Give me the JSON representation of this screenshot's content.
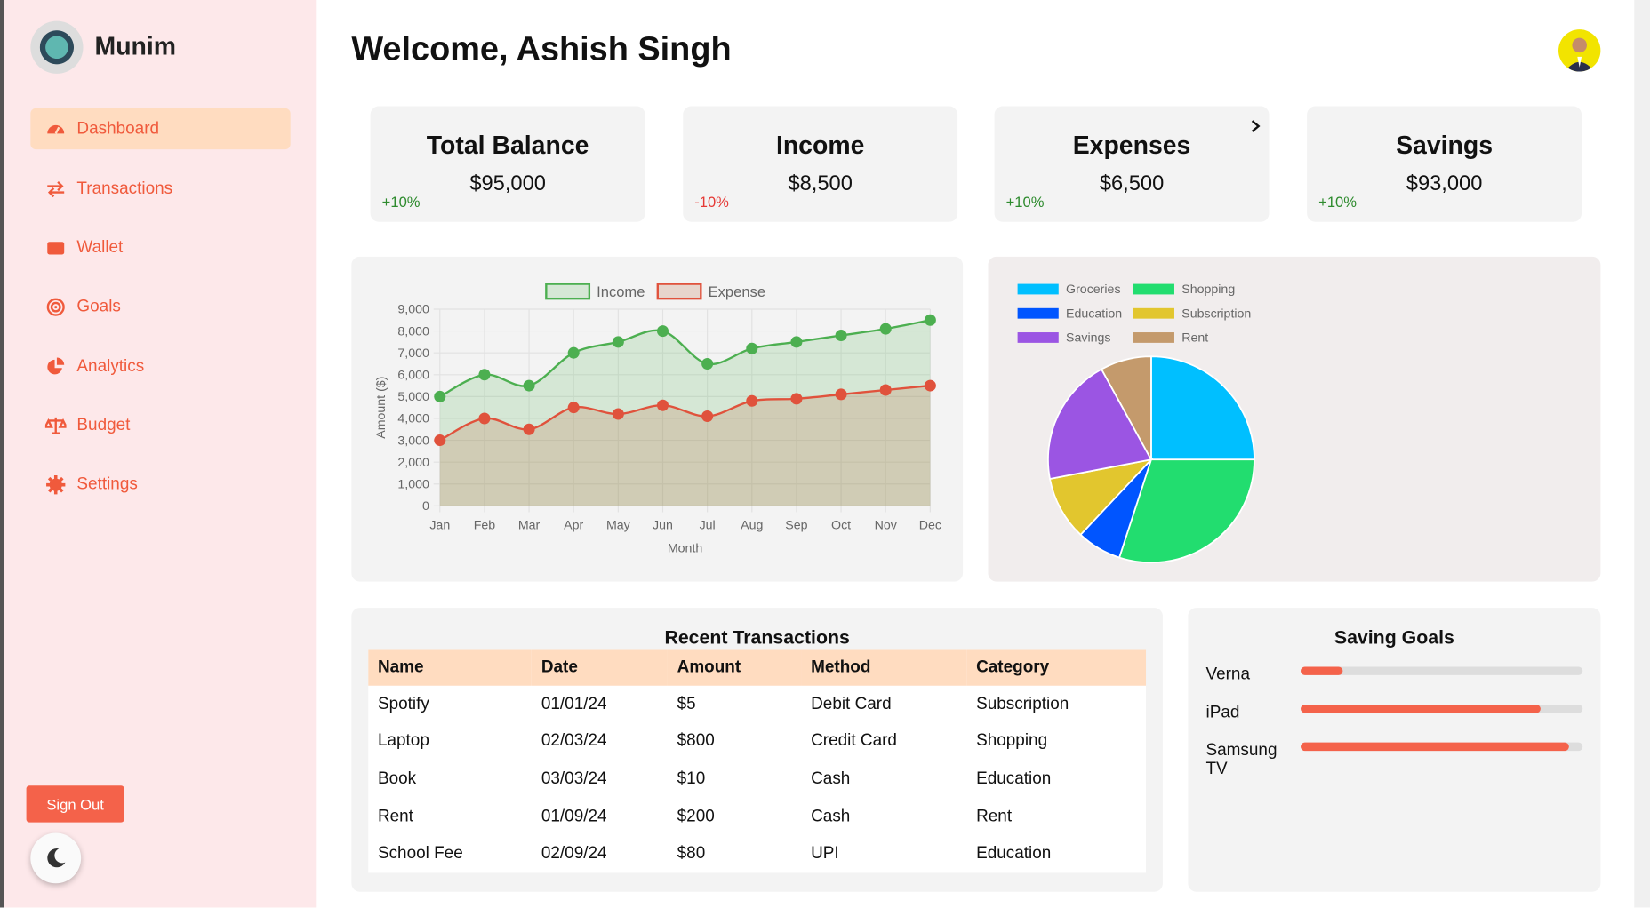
{
  "sidebar": {
    "brand": "Munim",
    "nav": [
      "Dashboard",
      "Transactions",
      "Wallet",
      "Goals",
      "Analytics",
      "Budget",
      "Settings"
    ],
    "sign_out": "Sign Out"
  },
  "header": {
    "title": "Welcome, Ashish Singh"
  },
  "cards": [
    {
      "title": "Total Balance",
      "value": "$95,000",
      "change": "+10%"
    },
    {
      "title": "Income",
      "value": "$8,500",
      "change": "-10%"
    },
    {
      "title": "Expenses",
      "value": "$6,500",
      "change": "+10%"
    },
    {
      "title": "Savings",
      "value": "$93,000",
      "change": "+10%"
    }
  ],
  "line_chart": {
    "type": "line",
    "x_label": "Month",
    "y_label": "Amount ($)",
    "categories": [
      "Jan",
      "Feb",
      "Mar",
      "Apr",
      "May",
      "Jun",
      "Jul",
      "Aug",
      "Sep",
      "Oct",
      "Nov",
      "Dec"
    ],
    "series": [
      {
        "name": "Income",
        "color": "#4caf50",
        "values": [
          5000,
          6000,
          5500,
          7000,
          7500,
          8000,
          6500,
          7200,
          7500,
          7800,
          8100,
          8500
        ]
      },
      {
        "name": "Expense",
        "color": "#e0523c",
        "values": [
          3000,
          4000,
          3500,
          4500,
          4200,
          4600,
          4100,
          4800,
          4900,
          5100,
          5300,
          5500
        ]
      }
    ],
    "ylim": [
      0,
      9000
    ],
    "yticks": [
      0,
      {
        "value": 1000,
        "label": "1,000"
      },
      {
        "value": 2000,
        "label": "2,000"
      },
      {
        "value": 3000,
        "label": "3,000"
      },
      {
        "value": 4000,
        "label": "4,000"
      },
      {
        "value": 5000,
        "label": "5,000"
      },
      {
        "value": 6000,
        "label": "6,000"
      },
      {
        "value": 7000,
        "label": "7,000"
      },
      {
        "value": 8000,
        "label": "8,000"
      },
      {
        "value": 9000,
        "label": "9,000"
      }
    ],
    "grid": true
  },
  "pie_chart": {
    "type": "pie",
    "categories": [
      "Groceries",
      "Shopping",
      "Education",
      "Subscription",
      "Savings",
      "Rent"
    ],
    "values": [
      25,
      30,
      7,
      10,
      20,
      8
    ],
    "colors": [
      "#00bfff",
      "#22dd6f",
      "#0055ff",
      "#e2c62e",
      "#9b55e3",
      "#c49a6c"
    ]
  },
  "transactions": {
    "title": "Recent Transactions",
    "columns": [
      "Name",
      "Date",
      "Amount",
      "Method",
      "Category"
    ],
    "rows": [
      [
        "Spotify",
        "01/01/24",
        "$5",
        "Debit Card",
        "Subscription"
      ],
      [
        "Laptop",
        "02/03/24",
        "$800",
        "Credit Card",
        "Shopping"
      ],
      [
        "Book",
        "03/03/24",
        "$10",
        "Cash",
        "Education"
      ],
      [
        "Rent",
        "01/09/24",
        "$200",
        "Cash",
        "Rent"
      ],
      [
        "School Fee",
        "02/09/24",
        "$80",
        "UPI",
        "Education"
      ]
    ]
  },
  "saving_goals": {
    "title": "Saving Goals",
    "goals": [
      {
        "name": "Verna",
        "progress": 15
      },
      {
        "name": "iPad",
        "progress": 85
      },
      {
        "name": "Samsung TV",
        "progress": 95
      }
    ]
  }
}
